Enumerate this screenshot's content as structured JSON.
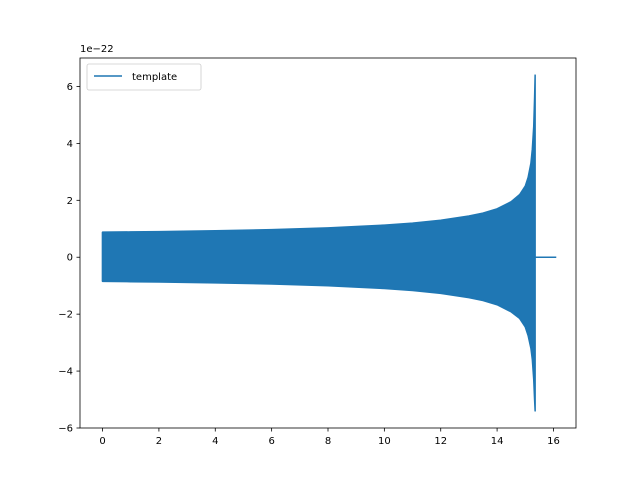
{
  "chart_data": {
    "type": "line",
    "title": "",
    "xlabel": "",
    "ylabel": "",
    "xlim": [
      -0.8,
      16.8
    ],
    "ylim": [
      -6,
      7
    ],
    "x_ticks": [
      0,
      2,
      4,
      6,
      8,
      10,
      12,
      14,
      16
    ],
    "y_ticks": [
      -6,
      -4,
      -2,
      0,
      2,
      4,
      6
    ],
    "y_offset_text": "1e−22",
    "grid": false,
    "legend": {
      "position": "top-left",
      "entries": [
        "template"
      ]
    },
    "series": [
      {
        "name": "template",
        "color": "#1f77b4",
        "envelope": {
          "x": [
            0.0,
            1,
            2,
            4,
            6,
            8,
            10,
            11,
            12,
            13,
            13.5,
            14,
            14.5,
            14.8,
            15.0,
            15.1,
            15.2,
            15.25,
            15.3,
            15.33,
            15.35
          ],
          "upper": [
            0.88,
            0.89,
            0.9,
            0.93,
            0.97,
            1.03,
            1.13,
            1.2,
            1.3,
            1.45,
            1.55,
            1.7,
            1.95,
            2.2,
            2.5,
            2.8,
            3.3,
            3.8,
            4.6,
            5.6,
            6.4
          ],
          "lower": [
            -0.85,
            -0.86,
            -0.87,
            -0.9,
            -0.94,
            -1.0,
            -1.1,
            -1.17,
            -1.27,
            -1.42,
            -1.52,
            -1.67,
            -1.92,
            -2.15,
            -2.45,
            -2.75,
            -3.2,
            -3.6,
            -4.3,
            -5.0,
            -5.4
          ]
        },
        "tail": {
          "x": [
            15.35,
            16.1
          ],
          "y": [
            0,
            0
          ]
        }
      }
    ]
  }
}
